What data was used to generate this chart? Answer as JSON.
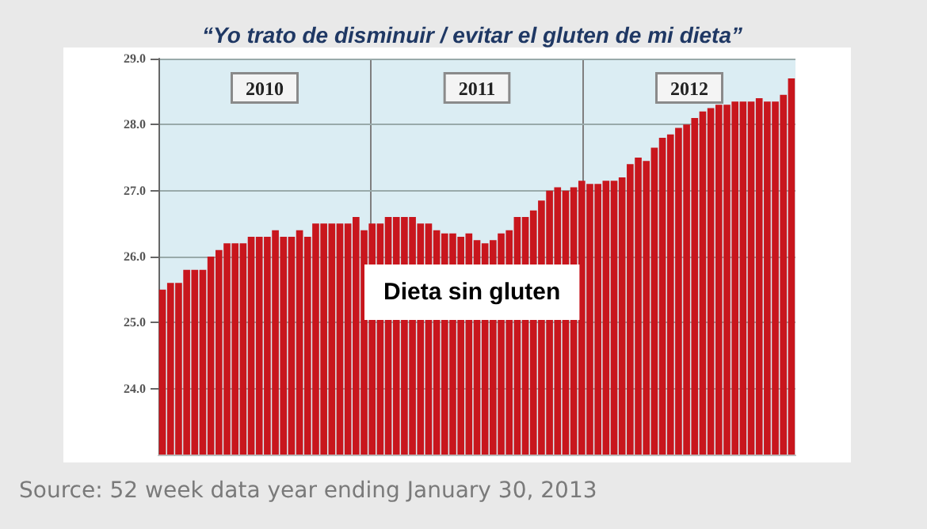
{
  "chart_data": {
    "type": "bar",
    "title": "“Yo trato de disminuir / evitar el gluten de mi dieta”",
    "categories": [
      null,
      null,
      null,
      null,
      null,
      null,
      null,
      null,
      null,
      null,
      null,
      null,
      null,
      null,
      null,
      null,
      null,
      null,
      null,
      null,
      null,
      null,
      null,
      null,
      null,
      null,
      null,
      null,
      null,
      null,
      null,
      null,
      null,
      null,
      null,
      null,
      null,
      null,
      null,
      null,
      null,
      null,
      null,
      null,
      null,
      null,
      null,
      null,
      null,
      null,
      null,
      null,
      null,
      null,
      null,
      null,
      null,
      null,
      null,
      null,
      null,
      null,
      null,
      null,
      null,
      null,
      null,
      null,
      null,
      null,
      null,
      null,
      null,
      null,
      null,
      null,
      null,
      null,
      null
    ],
    "values": [
      25.5,
      25.6,
      25.6,
      25.8,
      25.8,
      25.8,
      26.0,
      26.1,
      26.2,
      26.2,
      26.2,
      26.3,
      26.3,
      26.3,
      26.4,
      26.3,
      26.3,
      26.4,
      26.3,
      26.5,
      26.5,
      26.5,
      26.5,
      26.5,
      26.6,
      26.4,
      26.5,
      26.5,
      26.6,
      26.6,
      26.6,
      26.6,
      26.5,
      26.5,
      26.4,
      26.35,
      26.35,
      26.3,
      26.35,
      26.25,
      26.2,
      26.25,
      26.35,
      26.4,
      26.6,
      26.6,
      26.7,
      26.85,
      27.0,
      27.05,
      27.0,
      27.05,
      27.15,
      27.1,
      27.1,
      27.15,
      27.15,
      27.2,
      27.4,
      27.5,
      27.45,
      27.65,
      27.8,
      27.85,
      27.95,
      28.0,
      28.1,
      28.2,
      28.25,
      28.3,
      28.3,
      28.35,
      28.35,
      28.35,
      28.4,
      28.35,
      28.35,
      28.45,
      28.7
    ],
    "color": "#c8161d",
    "ylim": [
      23,
      29
    ],
    "yticks": [
      {
        "value": 24,
        "label": "24.0"
      },
      {
        "value": 25,
        "label": "25.0"
      },
      {
        "value": 26,
        "label": "26.0"
      },
      {
        "value": 27,
        "label": "27.0"
      },
      {
        "value": 28,
        "label": "28.0"
      },
      {
        "value": 29,
        "label": "29.0"
      }
    ],
    "grid": "y",
    "annotations": [
      "2010",
      "2011",
      "2012",
      "Dieta sin gluten",
      "Source: 52 week data year ending January 30, 2013"
    ]
  }
}
